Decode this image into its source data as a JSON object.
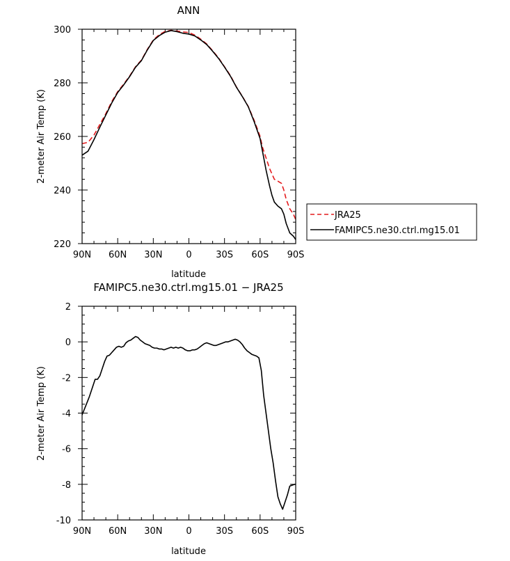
{
  "chart_data": [
    {
      "type": "line",
      "title": "ANN",
      "xlabel": "latitude",
      "ylabel": "2-meter Air Temp (K)",
      "xlim": [
        90,
        -90
      ],
      "ylim": [
        220,
        300
      ],
      "x_ticks": [
        {
          "value": 90,
          "label": "90N"
        },
        {
          "value": 60,
          "label": "60N"
        },
        {
          "value": 30,
          "label": "30N"
        },
        {
          "value": 0,
          "label": "0"
        },
        {
          "value": -30,
          "label": "30S"
        },
        {
          "value": -60,
          "label": "60S"
        },
        {
          "value": -90,
          "label": "90S"
        }
      ],
      "y_ticks": [
        220,
        240,
        260,
        280,
        300
      ],
      "legend_position": "outside-right",
      "series": [
        {
          "name": "JRA25",
          "color": "#e41a1c",
          "dash": "dashed",
          "x": [
            90,
            85,
            80,
            75,
            70,
            65,
            60,
            55,
            50,
            45,
            40,
            35,
            30,
            25,
            20,
            15,
            10,
            5,
            0,
            -5,
            -10,
            -15,
            -20,
            -25,
            -30,
            -35,
            -40,
            -45,
            -50,
            -55,
            -60,
            -62,
            -65,
            -68,
            -70,
            -72,
            -75,
            -78,
            -80,
            -82,
            -85,
            -88,
            -90
          ],
          "values": [
            257.3,
            257.8,
            260.5,
            264.5,
            268.5,
            273.0,
            276.7,
            279.5,
            282.5,
            286.0,
            288.5,
            292.5,
            296.0,
            298.0,
            299.2,
            299.6,
            299.3,
            299.0,
            298.8,
            297.8,
            296.3,
            294.5,
            292.0,
            289.3,
            286.0,
            282.7,
            278.5,
            275.0,
            271.2,
            266.0,
            260.0,
            256.0,
            252.0,
            248.0,
            246.0,
            244.0,
            243.3,
            242.5,
            240.0,
            236.5,
            233.0,
            231.0,
            229.0
          ]
        },
        {
          "name": "FAMIPC5.ne30.ctrl.mg15.01",
          "color": "#000000",
          "dash": "solid",
          "x": [
            90,
            85,
            80,
            75,
            70,
            65,
            60,
            55,
            50,
            45,
            40,
            35,
            30,
            25,
            20,
            15,
            10,
            5,
            0,
            -5,
            -10,
            -15,
            -20,
            -25,
            -30,
            -35,
            -40,
            -45,
            -50,
            -55,
            -60,
            -62,
            -65,
            -68,
            -70,
            -72,
            -75,
            -78,
            -80,
            -82,
            -85,
            -88,
            -90
          ],
          "values": [
            253.0,
            254.5,
            258.8,
            263.5,
            268.0,
            272.5,
            276.4,
            279.2,
            282.3,
            285.8,
            288.3,
            292.3,
            295.8,
            297.6,
            298.9,
            299.5,
            299.1,
            298.5,
            298.2,
            297.5,
            296.0,
            294.3,
            291.8,
            289.1,
            285.9,
            282.5,
            278.4,
            274.9,
            271.1,
            265.5,
            259.2,
            254.5,
            247.5,
            241.5,
            238.0,
            235.5,
            234.0,
            233.0,
            231.0,
            227.5,
            224.0,
            222.8,
            221.5
          ]
        }
      ]
    },
    {
      "type": "line",
      "title": "FAMIPC5.ne30.ctrl.mg15.01 − JRA25",
      "xlabel": "latitude",
      "ylabel": "2-meter Air Temp (K)",
      "xlim": [
        90,
        -90
      ],
      "ylim": [
        -10,
        2
      ],
      "x_ticks": [
        {
          "value": 90,
          "label": "90N"
        },
        {
          "value": 60,
          "label": "60N"
        },
        {
          "value": 30,
          "label": "30N"
        },
        {
          "value": 0,
          "label": "0"
        },
        {
          "value": -30,
          "label": "30S"
        },
        {
          "value": -60,
          "label": "60S"
        },
        {
          "value": -90,
          "label": "90S"
        }
      ],
      "y_ticks": [
        -10,
        -8,
        -6,
        -4,
        -2,
        0,
        2
      ],
      "series": [
        {
          "color": "#000000",
          "dash": "solid",
          "x": [
            90,
            87,
            84,
            81,
            79,
            77,
            75,
            73,
            71,
            69,
            67,
            65,
            63,
            61,
            59,
            57,
            55,
            53,
            51,
            49,
            47,
            45,
            43,
            41,
            39,
            37,
            35,
            33,
            31,
            29,
            27,
            25,
            23,
            21,
            19,
            17,
            15,
            13,
            11,
            9,
            7,
            5,
            3,
            1,
            -1,
            -3,
            -5,
            -7,
            -9,
            -11,
            -13,
            -15,
            -17,
            -19,
            -21,
            -23,
            -25,
            -27,
            -29,
            -31,
            -33,
            -35,
            -37,
            -39,
            -41,
            -43,
            -45,
            -47,
            -49,
            -51,
            -53,
            -55,
            -57,
            -59,
            -61,
            -63,
            -65,
            -67,
            -69,
            -71,
            -73,
            -75,
            -77,
            -79,
            -81,
            -83,
            -85,
            -87,
            -89,
            -90
          ],
          "values": [
            -4.1,
            -3.6,
            -3.1,
            -2.5,
            -2.1,
            -2.1,
            -1.9,
            -1.5,
            -1.1,
            -0.8,
            -0.75,
            -0.6,
            -0.45,
            -0.3,
            -0.25,
            -0.3,
            -0.25,
            -0.05,
            0.05,
            0.1,
            0.2,
            0.3,
            0.25,
            0.1,
            0.0,
            -0.1,
            -0.15,
            -0.2,
            -0.3,
            -0.35,
            -0.35,
            -0.4,
            -0.4,
            -0.45,
            -0.4,
            -0.35,
            -0.3,
            -0.35,
            -0.3,
            -0.35,
            -0.3,
            -0.35,
            -0.45,
            -0.5,
            -0.5,
            -0.45,
            -0.45,
            -0.4,
            -0.3,
            -0.2,
            -0.1,
            -0.05,
            -0.1,
            -0.15,
            -0.2,
            -0.2,
            -0.15,
            -0.1,
            -0.05,
            0.0,
            0.0,
            0.05,
            0.1,
            0.15,
            0.1,
            0.0,
            -0.15,
            -0.35,
            -0.5,
            -0.6,
            -0.7,
            -0.75,
            -0.8,
            -0.9,
            -1.6,
            -3.0,
            -4.0,
            -5.0,
            -6.0,
            -6.8,
            -7.8,
            -8.7,
            -9.1,
            -9.4,
            -9.0,
            -8.6,
            -8.1,
            -8.05,
            -8.0,
            -8.0
          ]
        }
      ]
    }
  ]
}
